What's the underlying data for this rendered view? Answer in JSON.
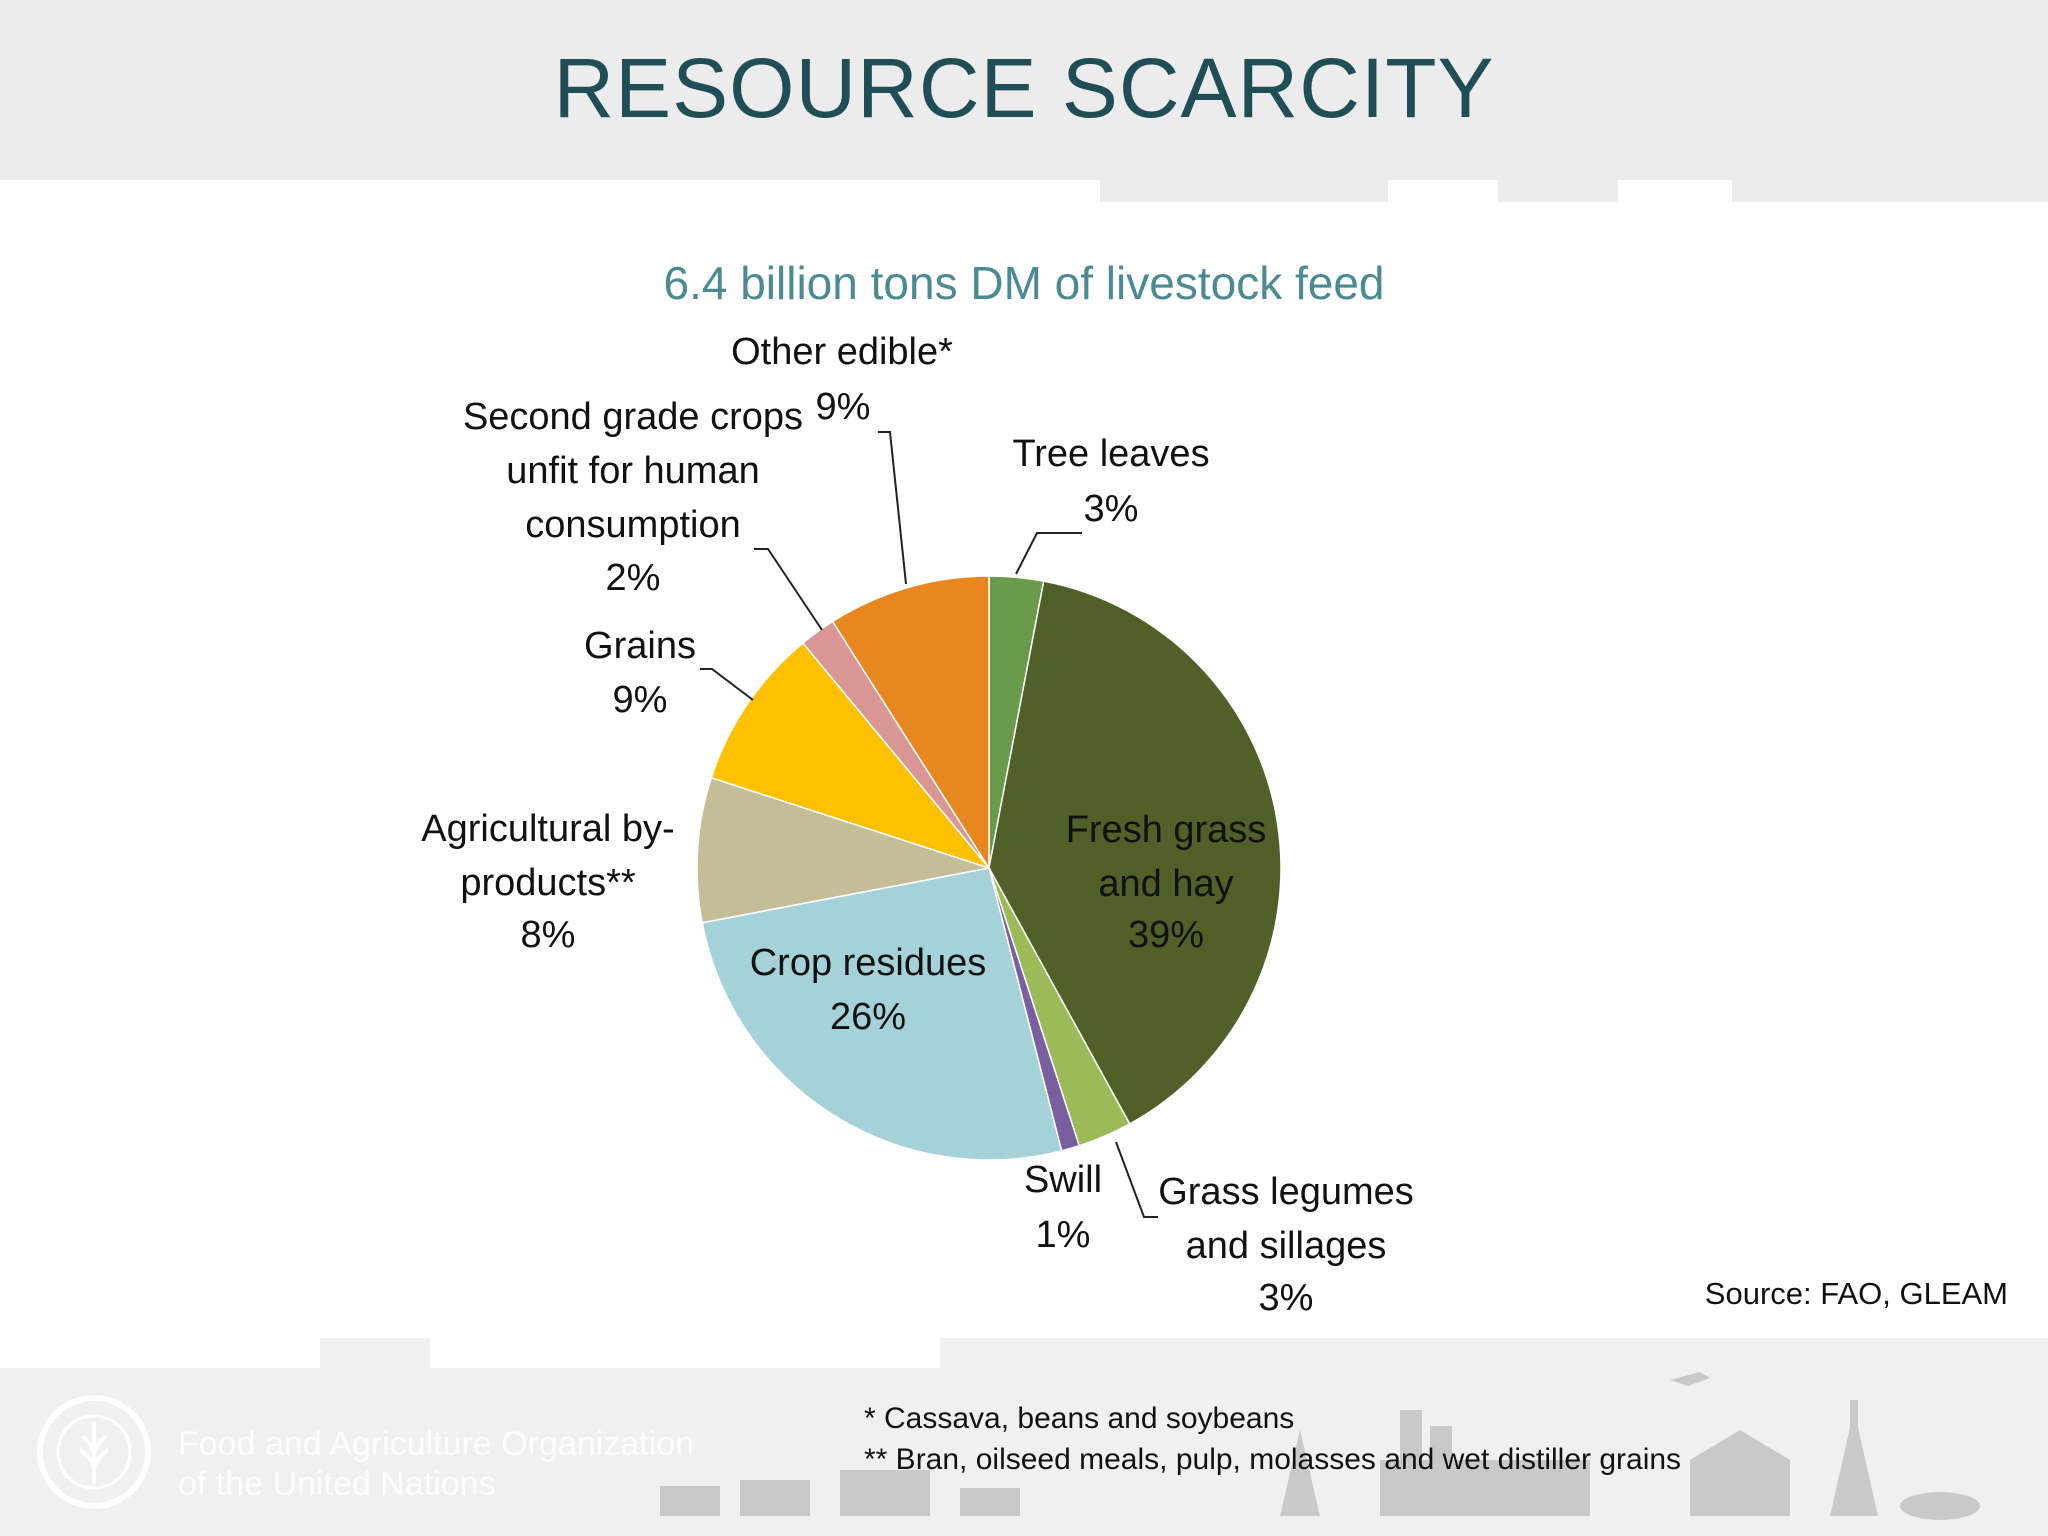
{
  "slide_title": "RESOURCE SCARCITY",
  "source": "Source: FAO, GLEAM",
  "footnotes": [
    "* Cassava, beans and soybeans",
    "** Bran, oilseed meals, pulp, molasses and wet distiller grains"
  ],
  "organization": {
    "line1": "Food and Agriculture Organization",
    "line2": "of the United Nations"
  },
  "chart_data": {
    "type": "pie",
    "title": "6.4 billion tons DM of livestock feed",
    "categories": [
      "Tree leaves",
      "Fresh grass and hay",
      "Grass legumes and sillages",
      "Swill",
      "Crop residues",
      "Agricultural by-products**",
      "Grains",
      "Second grade crops unfit for human consumption",
      "Other edible*"
    ],
    "values": [
      3,
      39,
      3,
      1,
      26,
      8,
      9,
      2,
      9
    ],
    "labels": [
      "3%",
      "39%",
      "3%",
      "1%",
      "26%",
      "8%",
      "9%",
      "2%",
      "9%"
    ],
    "colors": [
      "#6a9a4b",
      "#4f6128",
      "#9bbb59",
      "#7a5fa0",
      "#a4d2d8",
      "#c4bd97",
      "#ffc000",
      "#d99694",
      "#e8871f"
    ],
    "start_angle_deg": 0,
    "direction": "clockwise",
    "legend": "none"
  }
}
